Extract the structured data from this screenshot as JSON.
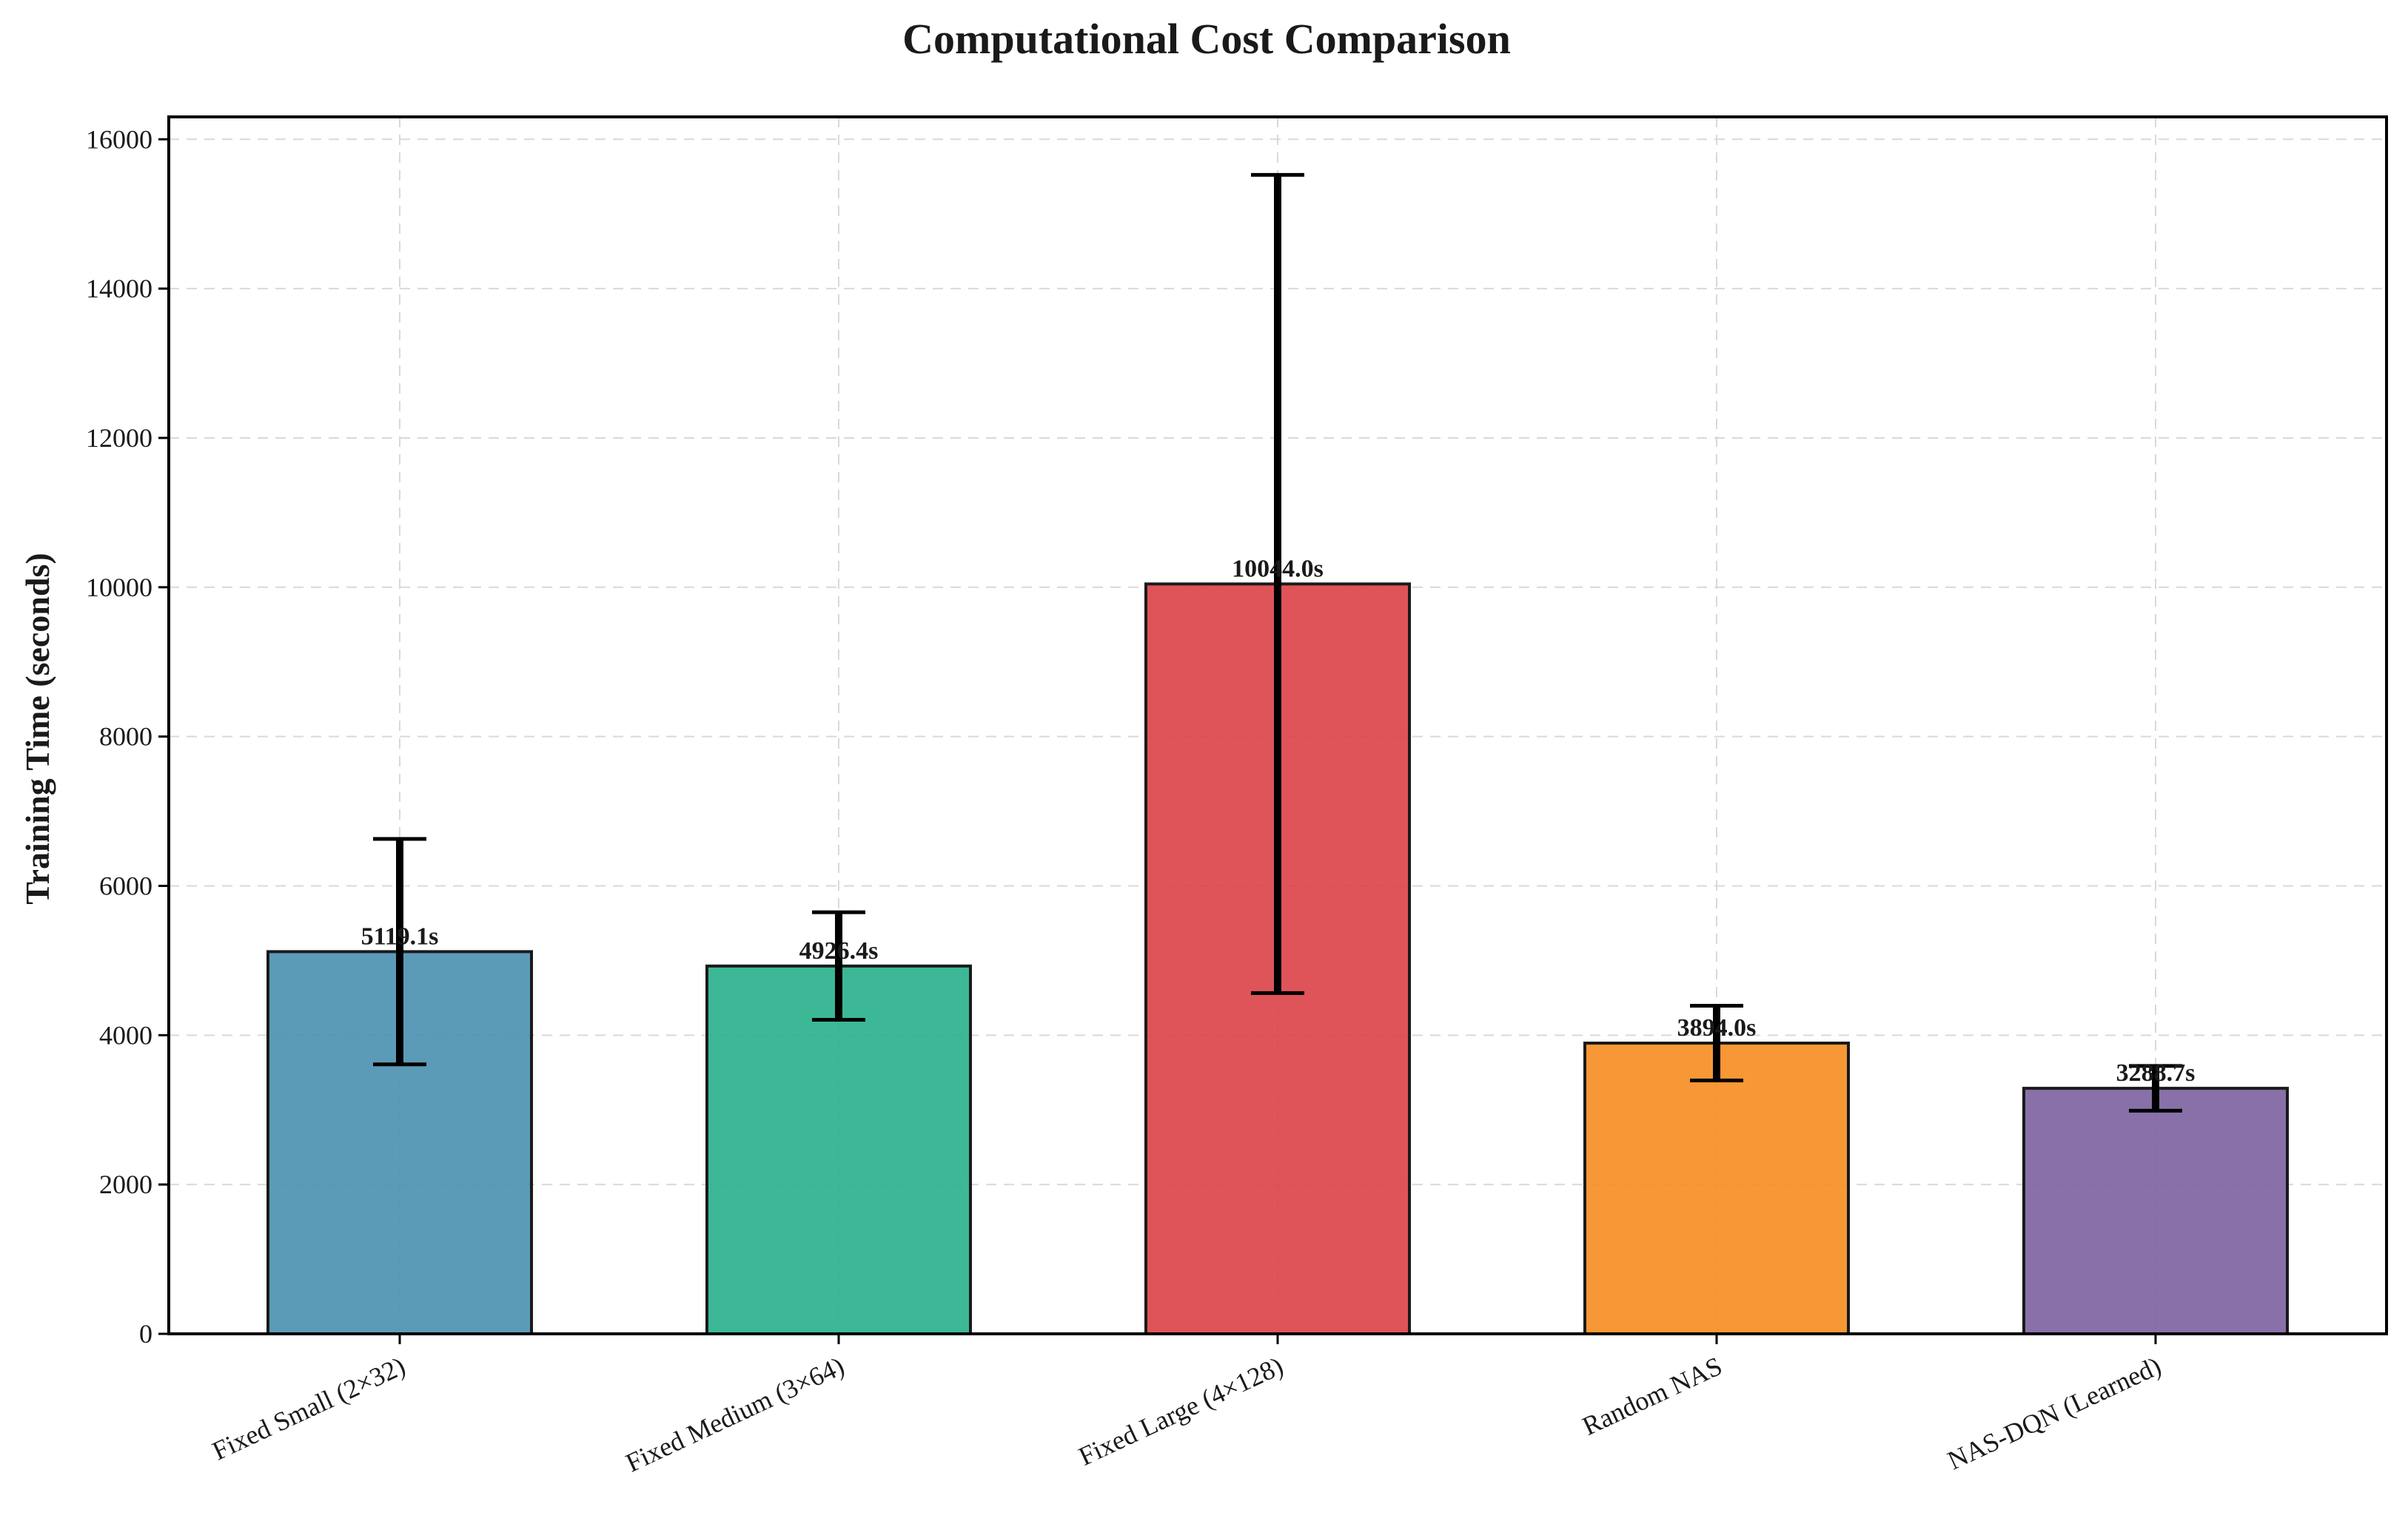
{
  "chart_data": {
    "type": "bar",
    "title": "Computational Cost Comparison",
    "xlabel": "",
    "ylabel": "Training Time (seconds)",
    "ylim": [
      0,
      16300
    ],
    "yticks": [
      0,
      2000,
      4000,
      6000,
      8000,
      10000,
      12000,
      14000,
      16000
    ],
    "ytick_labels": [
      "0",
      "2000",
      "4000",
      "6000",
      "8000",
      "10000",
      "12000",
      "14000",
      "16000"
    ],
    "grid": true,
    "categories": [
      "Fixed Small (2×32)",
      "Fixed Medium (3×64)",
      "Fixed Large (4×128)",
      "Random NAS",
      "NAS-DQN (Learned)"
    ],
    "values": [
      5119.1,
      4926.4,
      10044.0,
      3894.0,
      3288.7
    ],
    "errors": [
      1510,
      720,
      5480,
      500,
      300
    ],
    "value_labels": [
      "5119.1s",
      "4926.4s",
      "10044.0s",
      "3894.0s",
      "3288.7s"
    ],
    "colors": [
      "#4a90b0",
      "#27b08c",
      "#db4146",
      "#f68c1f",
      "#7c60a0"
    ]
  }
}
